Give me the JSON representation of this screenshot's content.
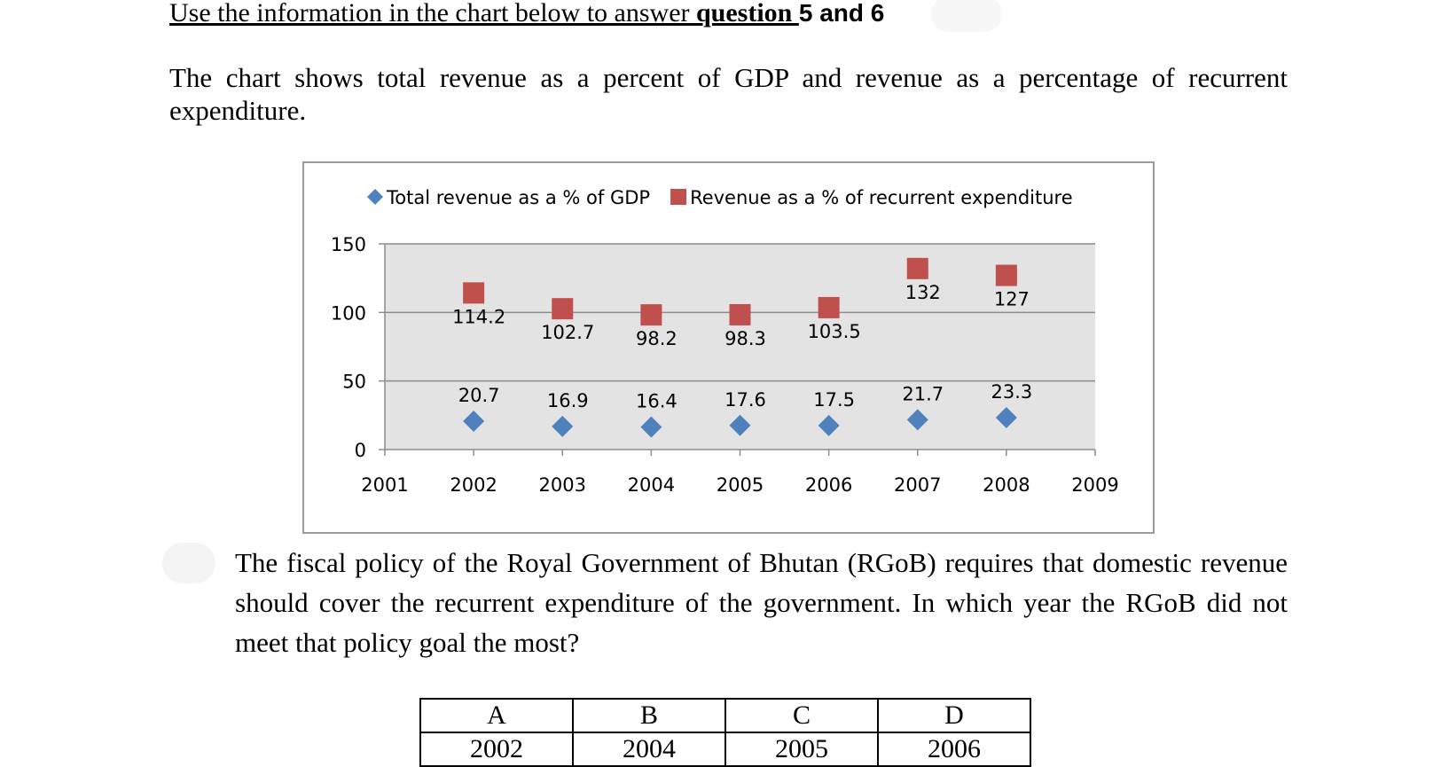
{
  "heading": {
    "part1": "Use the information in the chart below to answer ",
    "part2": "question ",
    "part3": "5 and 6"
  },
  "intro": "The chart shows total revenue as a percent of GDP and revenue as a percentage of recurrent expenditure.",
  "chart_data": {
    "type": "scatter",
    "title": "",
    "xlabel": "",
    "ylabel": "",
    "x_ticks": [
      2001,
      2002,
      2003,
      2004,
      2005,
      2006,
      2007,
      2008,
      2009
    ],
    "y_ticks": [
      0,
      50,
      100,
      150
    ],
    "xlim": [
      2001,
      2009
    ],
    "ylim": [
      0,
      150
    ],
    "grid": "horizontal",
    "legend_position": "top",
    "x": [
      2002,
      2003,
      2004,
      2005,
      2006,
      2007,
      2008
    ],
    "series": [
      {
        "name": "Total revenue as a % of GDP",
        "marker": "diamond",
        "color": "#4f81bd",
        "values": [
          20.7,
          16.9,
          16.4,
          17.6,
          17.5,
          21.7,
          23.3
        ],
        "labels": [
          "20.7",
          "16.9",
          "16.4",
          "17.6",
          "17.5",
          "21.7",
          "23.3"
        ]
      },
      {
        "name": "Revenue as a % of recurrent expenditure",
        "marker": "square",
        "color": "#c0504d",
        "values": [
          114.2,
          102.7,
          98.2,
          98.3,
          103.5,
          132,
          127
        ],
        "labels": [
          "114.2",
          "102.7",
          "98.2",
          "98.3",
          "103.5",
          "132",
          "127"
        ]
      }
    ]
  },
  "question": "The fiscal policy of the Royal Government of Bhutan (RGoB) requires that domestic revenue should cover the recurrent expenditure of the government. In which year the RGoB did not meet that policy goal the most?",
  "options": [
    {
      "letter": "A",
      "value": "2002"
    },
    {
      "letter": "B",
      "value": "2004"
    },
    {
      "letter": "C",
      "value": "2005"
    },
    {
      "letter": "D",
      "value": "2006"
    }
  ]
}
